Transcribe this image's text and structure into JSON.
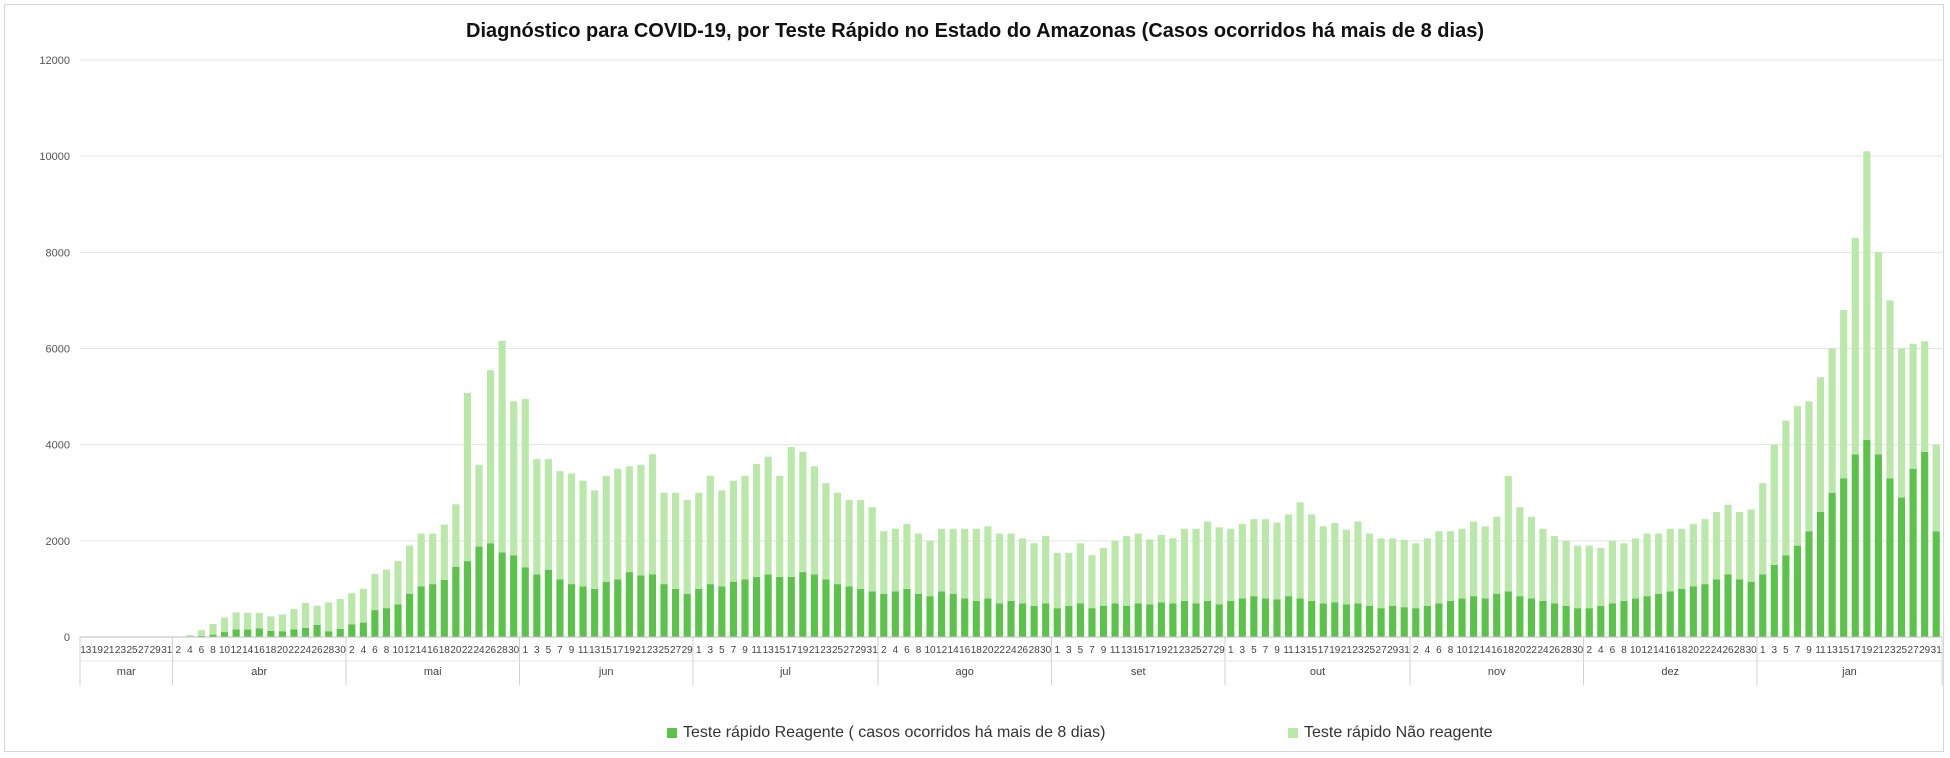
{
  "chart_data": {
    "type": "bar",
    "stacked": true,
    "title": "Diagnóstico para COVID-19, por  Teste Rápido no Estado do Amazonas (Casos ocorridos há mais de 8 dias)",
    "xlabel": "",
    "ylabel": "",
    "ylim": [
      0,
      12000
    ],
    "yticks": [
      "0",
      "2000",
      "4000",
      "6000",
      "8000",
      "10000",
      "12000"
    ],
    "grid": true,
    "legend_position": "bottom",
    "months": [
      {
        "label": "mar",
        "days": [
          "13",
          "19",
          "21",
          "23",
          "25",
          "27",
          "29",
          "31"
        ]
      },
      {
        "label": "abr",
        "days": [
          "2",
          "4",
          "6",
          "8",
          "10",
          "12",
          "14",
          "16",
          "18",
          "20",
          "22",
          "24",
          "26",
          "28",
          "30"
        ]
      },
      {
        "label": "mai",
        "days": [
          "2",
          "4",
          "6",
          "8",
          "10",
          "12",
          "14",
          "16",
          "18",
          "20",
          "22",
          "24",
          "26",
          "28",
          "30"
        ]
      },
      {
        "label": "jun",
        "days": [
          "1",
          "3",
          "5",
          "7",
          "9",
          "11",
          "13",
          "15",
          "17",
          "19",
          "21",
          "23",
          "25",
          "27",
          "29"
        ]
      },
      {
        "label": "jul",
        "days": [
          "1",
          "3",
          "5",
          "7",
          "9",
          "11",
          "13",
          "15",
          "17",
          "19",
          "21",
          "23",
          "25",
          "27",
          "29",
          "31"
        ]
      },
      {
        "label": "ago",
        "days": [
          "2",
          "4",
          "6",
          "8",
          "10",
          "12",
          "14",
          "16",
          "18",
          "20",
          "22",
          "24",
          "26",
          "28",
          "30"
        ]
      },
      {
        "label": "set",
        "days": [
          "1",
          "3",
          "5",
          "7",
          "9",
          "11",
          "13",
          "15",
          "17",
          "19",
          "21",
          "23",
          "25",
          "27",
          "29"
        ]
      },
      {
        "label": "out",
        "days": [
          "1",
          "3",
          "5",
          "7",
          "9",
          "11",
          "13",
          "15",
          "17",
          "19",
          "21",
          "23",
          "25",
          "27",
          "29",
          "31"
        ]
      },
      {
        "label": "nov",
        "days": [
          "2",
          "4",
          "6",
          "8",
          "10",
          "12",
          "14",
          "16",
          "18",
          "20",
          "22",
          "24",
          "26",
          "28",
          "30"
        ]
      },
      {
        "label": "dez",
        "days": [
          "2",
          "4",
          "6",
          "8",
          "10",
          "12",
          "14",
          "16",
          "18",
          "20",
          "22",
          "24",
          "26",
          "28",
          "30"
        ]
      },
      {
        "label": "jan",
        "days": [
          "1",
          "3",
          "5",
          "7",
          "9",
          "11",
          "13",
          "15",
          "17",
          "19",
          "21",
          "23",
          "25",
          "27",
          "29",
          "31"
        ]
      }
    ],
    "series": [
      {
        "name": "Teste rápido Reagente ( casos ocorridos há mais de 8 dias)",
        "color": "#5cc34a",
        "values": [
          0,
          2,
          1,
          1,
          1,
          2,
          2,
          3,
          3,
          9,
          22,
          50,
          103,
          160,
          160,
          180,
          130,
          120,
          160,
          190,
          250,
          120,
          170,
          260,
          300,
          560,
          600,
          680,
          900,
          1050,
          1100,
          1188,
          1460,
          1579,
          1880,
          1950,
          1760,
          1700,
          1450,
          1300,
          1400,
          1200,
          1100,
          1050,
          1000,
          1150,
          1200,
          1350,
          1280,
          1300,
          1100,
          1000,
          900,
          1000,
          1100,
          1050,
          1150,
          1200,
          1250,
          1300,
          1250,
          1250,
          1350,
          1300,
          1200,
          1100,
          1050,
          1000,
          950,
          900,
          950,
          1000,
          900,
          850,
          950,
          900,
          800,
          750,
          800,
          700,
          750,
          700,
          650,
          700,
          600,
          650,
          700,
          600,
          650,
          700,
          650,
          700,
          680,
          720,
          700,
          750,
          700,
          750,
          680,
          750,
          800,
          850,
          800,
          780,
          850,
          800,
          750,
          700,
          720,
          680,
          700,
          650,
          600,
          650,
          620,
          600,
          650,
          700,
          750,
          800,
          850,
          800,
          900,
          950,
          850,
          800,
          750,
          700,
          650,
          600,
          600,
          650,
          700,
          750,
          800,
          850,
          900,
          950,
          1000,
          1050,
          1100,
          1200,
          1300,
          1200,
          1150,
          1300,
          1500,
          1700,
          1900,
          2200,
          2600,
          3000,
          3300,
          3800,
          4100,
          3800,
          3300,
          2900,
          3500,
          3850,
          2200
        ]
      },
      {
        "name": "Teste rápido Não reagente",
        "color": "#b9e8a9",
        "values": [
          0,
          2,
          1,
          1,
          1,
          2,
          2,
          3,
          5,
          30,
          120,
          220,
          300,
          350,
          340,
          320,
          300,
          350,
          420,
          520,
          400,
          600,
          620,
          650,
          700,
          750,
          800,
          900,
          1000,
          1100,
          1050,
          1150,
          1300,
          3500,
          1700,
          3600,
          4400,
          3200,
          3500,
          2400,
          2300,
          2250,
          2300,
          2200,
          2050,
          2200,
          2300,
          2200,
          2300,
          2500,
          1900,
          2000,
          1950,
          2000,
          2250,
          2000,
          2100,
          2150,
          2350,
          2450,
          2100,
          2700,
          2500,
          2250,
          2000,
          1900,
          1800,
          1850,
          1750,
          1300,
          1300,
          1350,
          1250,
          1150,
          1300,
          1350,
          1450,
          1500,
          1500,
          1450,
          1400,
          1350,
          1300,
          1400,
          1150,
          1100,
          1250,
          1100,
          1200,
          1300,
          1450,
          1450,
          1350,
          1400,
          1350,
          1500,
          1550,
          1650,
          1600,
          1500,
          1550,
          1600,
          1650,
          1600,
          1700,
          2000,
          1800,
          1600,
          1650,
          1550,
          1700,
          1500,
          1450,
          1400,
          1400,
          1350,
          1400,
          1500,
          1450,
          1450,
          1550,
          1500,
          1600,
          2400,
          1850,
          1700,
          1500,
          1400,
          1350,
          1300,
          1300,
          1200,
          1300,
          1200,
          1250,
          1300,
          1250,
          1300,
          1250,
          1300,
          1350,
          1400,
          1450,
          1400,
          1500,
          1900,
          2500,
          2800,
          2900,
          2700,
          2800,
          3000,
          3500,
          4500,
          6000,
          4200,
          3700,
          3100,
          2600,
          2300,
          1800
        ]
      }
    ]
  }
}
